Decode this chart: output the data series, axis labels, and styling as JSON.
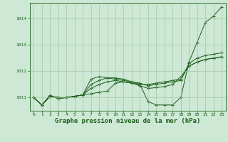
{
  "background_color": "#cde8d4",
  "plot_bg_color": "#cde8d4",
  "grid_color": "#9bbf9b",
  "line_color": "#1a5e1a",
  "xlabel": "Graphe pression niveau de la mer (hPa)",
  "xlabel_fontsize": 6.5,
  "xlim": [
    -0.5,
    23.5
  ],
  "ylim": [
    1010.5,
    1014.6
  ],
  "yticks": [
    1011,
    1012,
    1013,
    1014
  ],
  "xticks": [
    0,
    1,
    2,
    3,
    4,
    5,
    6,
    7,
    8,
    9,
    10,
    11,
    12,
    13,
    14,
    15,
    16,
    17,
    18,
    19,
    20,
    21,
    22,
    23
  ],
  "line1": [
    1011.0,
    1010.72,
    1011.1,
    1010.95,
    1011.0,
    1011.05,
    1011.1,
    1011.15,
    1011.2,
    1011.25,
    1011.55,
    1011.6,
    1011.55,
    1011.5,
    1010.85,
    1010.72,
    1010.72,
    1010.72,
    1011.0,
    1012.35,
    1013.1,
    1013.85,
    1014.1,
    1014.45
  ],
  "line2": [
    1011.0,
    1010.72,
    1011.05,
    1011.0,
    1011.0,
    1011.05,
    1011.1,
    1011.7,
    1011.8,
    1011.75,
    1011.7,
    1011.65,
    1011.6,
    1011.55,
    1011.45,
    1011.5,
    1011.55,
    1011.6,
    1011.65,
    1012.3,
    1012.5,
    1012.6,
    1012.65,
    1012.7
  ],
  "line3": [
    1011.0,
    1010.72,
    1011.05,
    1011.0,
    1011.0,
    1011.05,
    1011.1,
    1011.5,
    1011.65,
    1011.75,
    1011.75,
    1011.7,
    1011.6,
    1011.5,
    1011.5,
    1011.55,
    1011.6,
    1011.65,
    1011.7,
    1012.2,
    1012.35,
    1012.45,
    1012.5,
    1012.55
  ],
  "line4": [
    1011.0,
    1010.72,
    1011.05,
    1011.0,
    1011.0,
    1011.05,
    1011.1,
    1011.35,
    1011.5,
    1011.6,
    1011.65,
    1011.6,
    1011.55,
    1011.45,
    1011.35,
    1011.38,
    1011.42,
    1011.5,
    1011.8,
    1012.2,
    1012.35,
    1012.45,
    1012.5,
    1012.55
  ]
}
